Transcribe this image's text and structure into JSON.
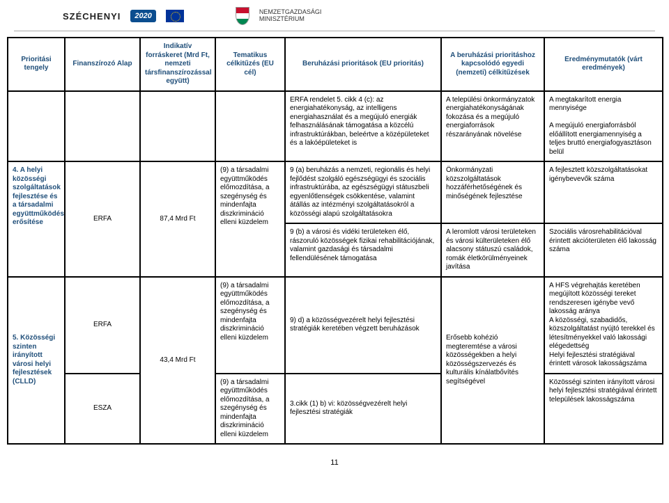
{
  "header": {
    "brand": "SZÉCHENYI",
    "year": "2020",
    "ministry_line1": "NEMZETGAZDASÁGI",
    "ministry_line2": "MINISZTÉRIUM"
  },
  "table": {
    "headers": {
      "axis": "Prioritási tengely",
      "fund": "Finanszírozó Alap",
      "budget": "Indikatív forráskeret (Mrd Ft, nemzeti társfinanszírozással együtt)",
      "thematic": "Tematikus célkitűzés (EU cél)",
      "priorities": "Beruházási prioritások (EU prioritás)",
      "specific": "A beruházási prioritáshoz kapcsolódó egyedi (nemzeti) célkitűzések",
      "results": "Eredménymutatók (várt eredmények)"
    },
    "row_spacer": {
      "priorities": "ERFA rendelet 5. cikk 4 (c): az energiahatékonyság, az intelligens energiahasználat és a megújuló energiák felhasználásának támogatása a közcélú infrastruktúrákban, beleértve a középületeket és a lakóépületeket is",
      "specific": "A települési önkormányzatok energiahatékonyságának fokozása és a megújuló energiaforrások részarányának növelése",
      "results": "A megtakarított energia mennyisége\n\nA megújuló energiaforrásból előállított energiamennyiség a teljes bruttó energiafogyasztáson belül"
    },
    "row4a": {
      "axis": "4. A helyi közösségi szolgáltatások fejlesztése és a társadalmi együttműködés erősítése",
      "fund": "ERFA",
      "budget": "87,4 Mrd Ft",
      "thematic": "(9) a társadalmi együttműködés előmozdítása, a szegénység és mindenfajta diszkrimináció elleni küzdelem",
      "priorities_a": "9 (a) beruházás a nemzeti, regionális és helyi fejlődést szolgáló egészségügyi és szociális infrastruktúrába, az egészségügyi státuszbeli egyenlőtlenségek csökkentése, valamint átállás az intézményi szolgáltatásokról a közösségi alapú szolgáltatásokra",
      "priorities_b": "9 (b) a városi és vidéki területeken élő, rászoruló közösségek fizikai rehabilitációjának, valamint gazdasági és társadalmi fellendülésének támogatása",
      "specific_a": "Önkormányzati közszolgáltatások hozzáférhetőségének és minőségének fejlesztése",
      "specific_b": "A leromlott városi területeken és városi külterületeken élő alacsony státuszú családok, romák életkörülményeinek javítása",
      "results_a": "A fejlesztett közszolgáltatásokat igénybevevők száma",
      "results_b": "Szociális városrehabilitációval érintett akcióterületen élő lakosság száma"
    },
    "row5_axis": "5. Közösségi szinten irányított városi helyi fejlesztések (CLLD)",
    "row5_budget": "43,4 Mrd Ft",
    "row5a": {
      "fund": "ERFA",
      "thematic": "(9) a társadalmi együttműködés előmozdítása, a szegénység és mindenfajta diszkrimináció elleni küzdelem",
      "priorities": "9) d) a közösségvezérelt helyi fejlesztési stratégiák keretében végzett beruházások",
      "specific": "Erősebb kohézió megteremtése a városi közösségekben a helyi közösségszervezés és kulturális kínálatbővítés segítségével",
      "results": "A HFS végrehajtás keretében megújított közösségi tereket rendszeresen igénybe vevő lakosság aránya\nA közösségi, szabadidős, közszolgáltatást nyújtó terekkel és létesítményekkel való lakossági elégedettség\nHelyi fejlesztési stratégiával érintett városok lakosságszáma"
    },
    "row5b": {
      "fund": "ESZA",
      "thematic": "(9) a társadalmi együttműködés előmozdítása, a szegénység és mindenfajta diszkrimináció elleni küzdelem",
      "priorities": "3.cikk (1) b) vi: közösségvezérelt helyi fejlesztési stratégiák",
      "results": "Közösségi szinten irányított városi helyi fejlesztési stratégiával érintett települések lakosságszáma"
    }
  },
  "page_number": "11"
}
